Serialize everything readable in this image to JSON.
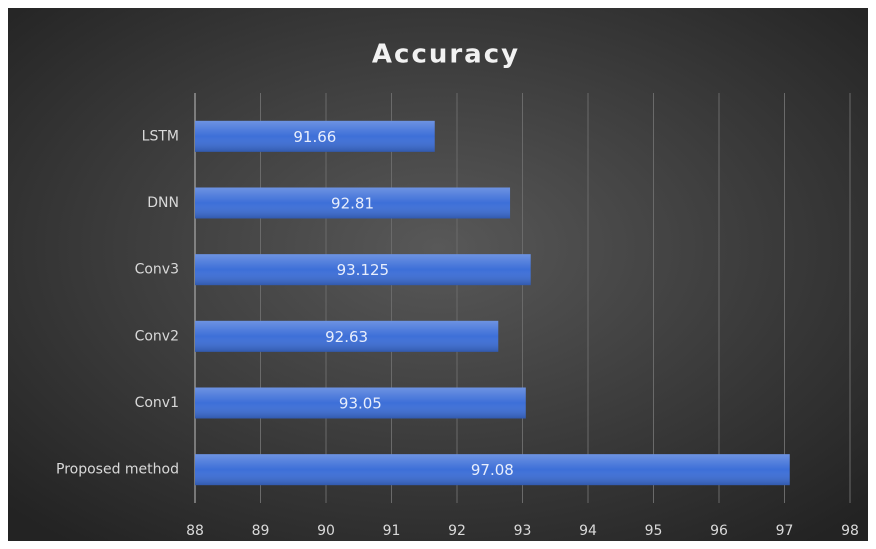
{
  "chart_data": {
    "type": "bar",
    "orientation": "horizontal",
    "title": "Accuracy",
    "categories": [
      "LSTM",
      "DNN",
      "Conv3",
      "Conv2",
      "Conv1",
      "Proposed method"
    ],
    "values": [
      91.66,
      92.81,
      93.125,
      92.63,
      93.05,
      97.08
    ],
    "color": "#3d6fd8",
    "xlim": [
      88,
      98
    ],
    "xticks": [
      88,
      89,
      90,
      91,
      92,
      93,
      94,
      95,
      96,
      97,
      98
    ],
    "grid": true
  }
}
